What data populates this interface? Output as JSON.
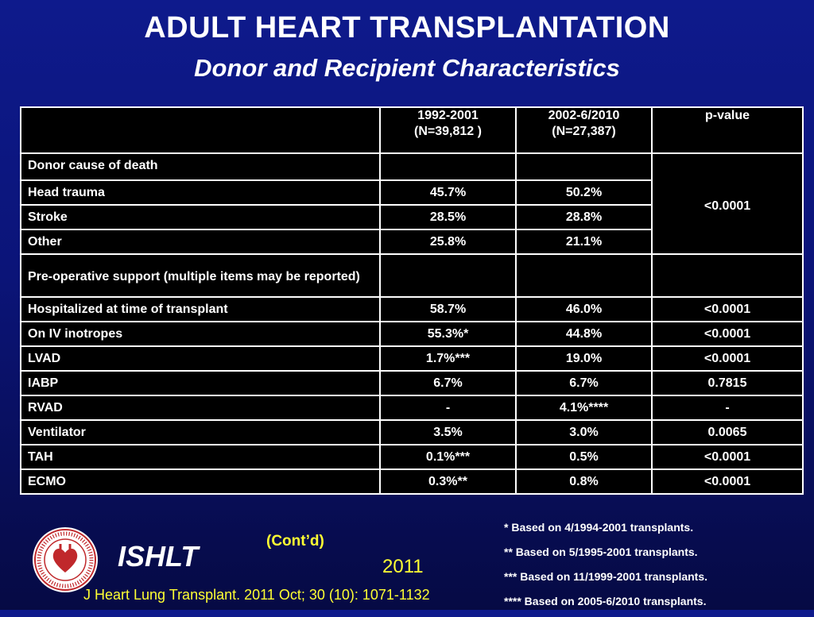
{
  "title": "ADULT HEART TRANSPLANTATION",
  "subtitle": "Donor and Recipient Characteristics",
  "table": {
    "headers": [
      "",
      "1992-2001\n(N=39,812 )",
      "2002-6/2010\n(N=27,387)",
      "p-value"
    ],
    "header_lines": [
      [
        "1992-2001",
        "(N=39,812 )"
      ],
      [
        "2002-6/2010",
        "(N=27,387)"
      ],
      [
        "p-value"
      ]
    ],
    "sections": [
      {
        "label": "Donor cause of death",
        "group_p": "<0.0001",
        "rows": [
          {
            "label": "Head trauma",
            "a": "45.7%",
            "b": "50.2%"
          },
          {
            "label": "Stroke",
            "a": "28.5%",
            "b": "28.8%"
          },
          {
            "label": "Other",
            "a": "25.8%",
            "b": "21.1%"
          }
        ]
      },
      {
        "label": "Pre-operative support (multiple items may be reported)",
        "rows": [
          {
            "label": "Hospitalized at time of transplant",
            "a": "58.7%",
            "b": "46.0%",
            "p": "<0.0001"
          },
          {
            "label": "On IV inotropes",
            "a": "55.3%*",
            "b": "44.8%",
            "p": "<0.0001"
          },
          {
            "label": "LVAD",
            "a": "1.7%***",
            "b": "19.0%",
            "p": "<0.0001"
          },
          {
            "label": "IABP",
            "a": "6.7%",
            "b": "6.7%",
            "p": "0.7815"
          },
          {
            "label": "RVAD",
            "a": "-",
            "b": "4.1%****",
            "p": "-"
          },
          {
            "label": "Ventilator",
            "a": "3.5%",
            "b": "3.0%",
            "p": "0.0065"
          },
          {
            "label": "TAH",
            "a": "0.1%***",
            "b": "0.5%",
            "p": "<0.0001"
          },
          {
            "label": "ECMO",
            "a": "0.3%**",
            "b": "0.8%",
            "p": "<0.0001"
          }
        ]
      }
    ]
  },
  "footer": {
    "brand": "ISHLT",
    "logo_icon": "ishlt-seal-icon",
    "contd": "(Cont’d)",
    "year": "2011",
    "citation": "J Heart Lung Transplant. 2011 Oct; 30 (10): 1071-1132",
    "notes": [
      "*  Based on 4/1994-2001 transplants.",
      "** Based on 5/1995-2001 transplants.",
      "*** Based on 11/1999-2001 transplants.",
      "**** Based on 2005-6/2010 transplants."
    ]
  },
  "colors": {
    "accent": "#ffff33",
    "background": "#0b1478",
    "table_bg": "#000000"
  }
}
